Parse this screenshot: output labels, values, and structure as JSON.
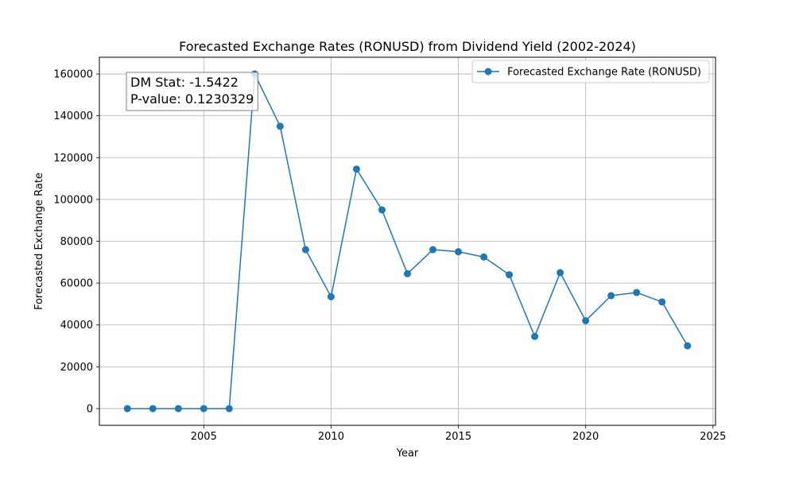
{
  "chart_data": {
    "type": "line",
    "title": "Forecasted Exchange Rates (RONUSD) from Dividend Yield (2002-2024)",
    "xlabel": "Year",
    "ylabel": "Forecasted Exchange Rate",
    "xlim": [
      2000.9,
      2025.1
    ],
    "ylim": [
      -8000,
      168000
    ],
    "x_ticks": [
      2005,
      2010,
      2015,
      2020,
      2025
    ],
    "y_ticks": [
      0,
      20000,
      40000,
      60000,
      80000,
      100000,
      120000,
      140000,
      160000
    ],
    "grid": true,
    "legend_position": "upper right",
    "annotation_lines": [
      "DM Stat: -1.5422",
      "P-value: 0.1230329"
    ],
    "series": [
      {
        "name": "Forecasted Exchange Rate (RONUSD)",
        "color": "#1f77b4",
        "marker": "circle",
        "x": [
          2002,
          2003,
          2004,
          2005,
          2006,
          2007,
          2008,
          2009,
          2010,
          2011,
          2012,
          2013,
          2014,
          2015,
          2016,
          2017,
          2018,
          2019,
          2020,
          2021,
          2022,
          2023,
          2024
        ],
        "y": [
          0,
          0,
          0,
          0,
          0,
          160000,
          135000,
          76000,
          53500,
          114500,
          95000,
          64500,
          76000,
          75000,
          72500,
          64000,
          34500,
          65000,
          42000,
          54000,
          55500,
          51000,
          30000
        ]
      }
    ]
  }
}
